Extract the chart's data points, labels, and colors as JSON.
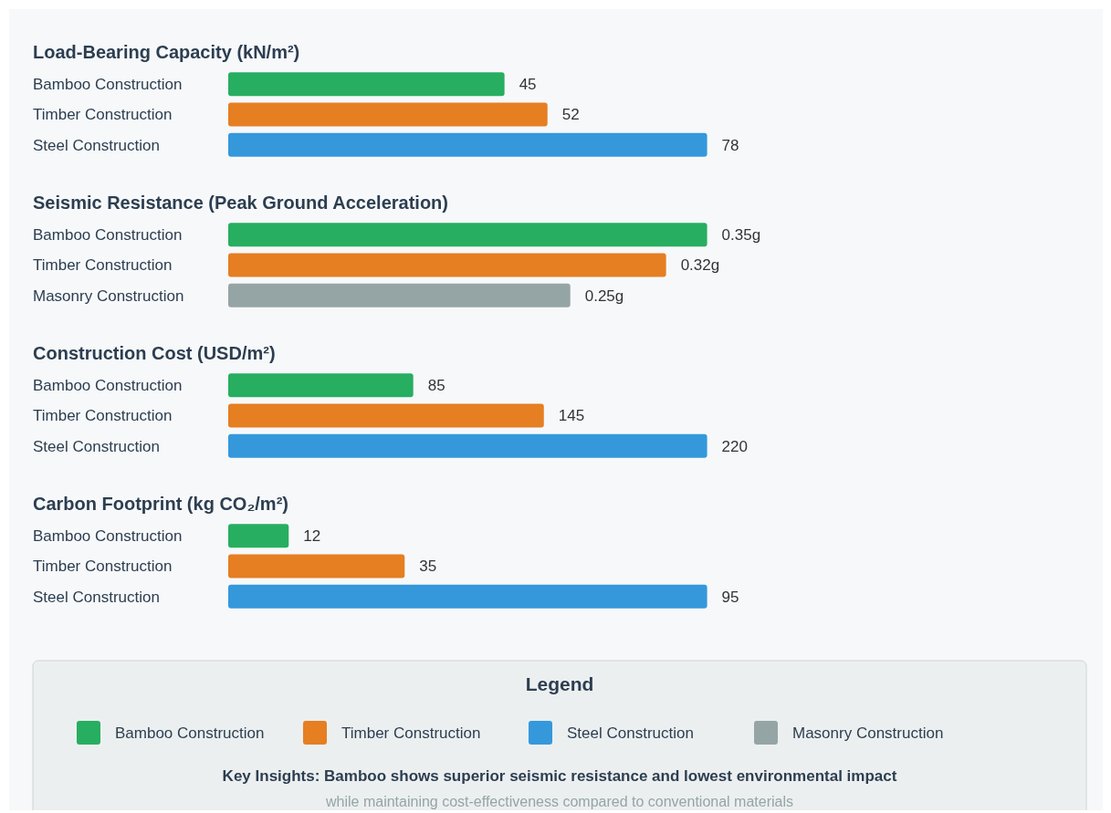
{
  "chart_data": [
    {
      "type": "bar",
      "orientation": "horizontal",
      "title": "Load-Bearing Capacity (kN/m²)",
      "categories": [
        "Bamboo Construction",
        "Timber Construction",
        "Steel Construction"
      ],
      "values": [
        45,
        52,
        78
      ],
      "colors": [
        "#27ae60",
        "#e67e22",
        "#3498db"
      ],
      "data_labels": true
    },
    {
      "type": "bar",
      "orientation": "horizontal",
      "title": "Seismic Resistance (Peak Ground Acceleration)",
      "categories": [
        "Bamboo Construction",
        "Timber Construction",
        "Masonry Construction"
      ],
      "values": [
        0.35,
        0.32,
        0.25
      ],
      "value_labels": [
        "0.35g",
        "0.32g",
        "0.25g"
      ],
      "colors": [
        "#27ae60",
        "#e67e22",
        "#95a5a6"
      ]
    },
    {
      "type": "bar",
      "orientation": "horizontal",
      "title": "Construction Cost (USD/m²)",
      "categories": [
        "Bamboo Construction",
        "Timber Construction",
        "Steel Construction"
      ],
      "values": [
        85,
        145,
        220
      ],
      "colors": [
        "#27ae60",
        "#e67e22",
        "#3498db"
      ],
      "data_labels": true
    },
    {
      "type": "bar",
      "orientation": "horizontal",
      "title": "Carbon Footprint (kg CO₂/m²)",
      "categories": [
        "Bamboo Construction",
        "Timber Construction",
        "Steel Construction"
      ],
      "values": [
        12,
        35,
        95
      ],
      "colors": [
        "#27ae60",
        "#e67e22",
        "#3498db"
      ],
      "data_labels": true
    },
    {
      "type": "other",
      "title": "Legend",
      "categories": [
        "Bamboo Construction",
        "Timber Construction",
        "Steel Construction",
        "Masonry Construction"
      ],
      "colors": [
        "#27ae60",
        "#e67e22",
        "#3498db",
        "#95a5a6"
      ],
      "annotations": [
        "Key Insights: Bamboo shows superior seismic resistance and lowest environmental impact",
        "while maintaining cost-effectiveness compared to conventional materials"
      ]
    }
  ]
}
